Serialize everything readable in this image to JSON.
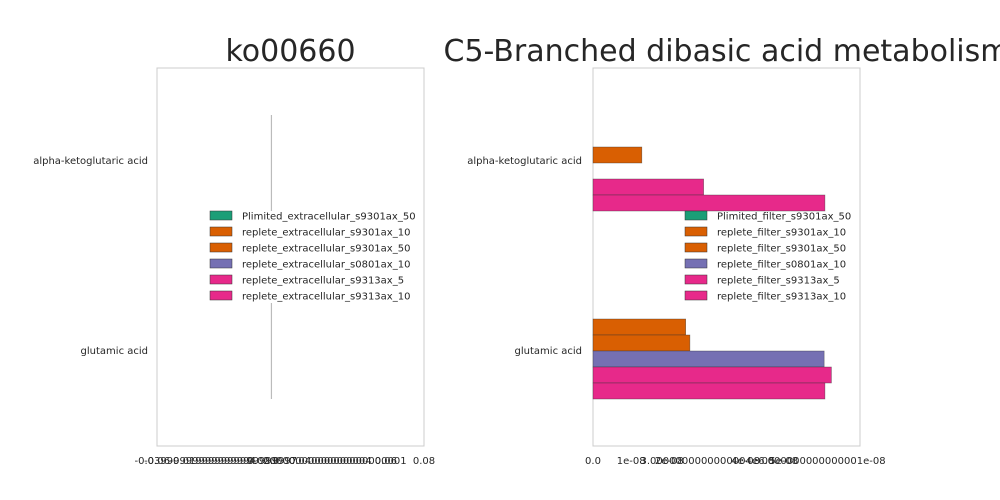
{
  "chart_data": [
    {
      "type": "bar",
      "orientation": "horizontal",
      "title": "ko00660",
      "categories": [
        "alpha-ketoglutaric acid",
        "glutamic acid"
      ],
      "xlabel": "",
      "ylabel": "",
      "xlim": [
        -0.06,
        0.08
      ],
      "x_tick_labels": [
        "-0.06",
        "-0.03999999999999994",
        "-0.019999999999999997",
        "0.0",
        "0.020000000000000004",
        "0.04000000000000001",
        "0.06",
        "0.08"
      ],
      "legend_position": "center",
      "grid": false,
      "series": [
        {
          "name": "Plimited_extracellular_s9301ax_50",
          "color": "#1b9e77",
          "values": [
            0,
            0
          ]
        },
        {
          "name": "replete_extracellular_s9301ax_10",
          "color": "#d95f02",
          "values": [
            0,
            0
          ]
        },
        {
          "name": "replete_extracellular_s9301ax_50",
          "color": "#d95f02",
          "values": [
            0,
            0
          ]
        },
        {
          "name": "replete_extracellular_s0801ax_10",
          "color": "#7570b3",
          "values": [
            0,
            0
          ]
        },
        {
          "name": "replete_extracellular_s9313ax_5",
          "color": "#e7298a",
          "values": [
            0,
            0
          ]
        },
        {
          "name": "replete_extracellular_s9313ax_10",
          "color": "#e7298a",
          "values": [
            0,
            0
          ]
        }
      ]
    },
    {
      "type": "bar",
      "orientation": "horizontal",
      "title": "C5-Branched dibasic acid metabolism",
      "categories": [
        "alpha-ketoglutaric acid",
        "glutamic acid"
      ],
      "xlabel": "",
      "ylabel": "",
      "xlim": [
        0,
        7e-08
      ],
      "x_tick_labels": [
        "0.0",
        "1e-08",
        "2e-08",
        "3.0000000000000004e-08",
        "4e-08",
        "5e-08",
        "6.000000000000001e-08"
      ],
      "legend_position": "center-right",
      "grid": false,
      "series": [
        {
          "name": "Plimited_filter_s9301ax_50",
          "color": "#1b9e77",
          "values": [
            0,
            0
          ]
        },
        {
          "name": "replete_filter_s9301ax_10",
          "color": "#d95f02",
          "values": [
            0,
            2.43e-08
          ]
        },
        {
          "name": "replete_filter_s9301ax_50",
          "color": "#d95f02",
          "values": [
            1.28e-08,
            2.54e-08
          ]
        },
        {
          "name": "replete_filter_s0801ax_10",
          "color": "#7570b3",
          "values": [
            0,
            6.06e-08
          ]
        },
        {
          "name": "replete_filter_s9313ax_5",
          "color": "#e7298a",
          "values": [
            2.9e-08,
            6.25e-08
          ]
        },
        {
          "name": "replete_filter_s9313ax_10",
          "color": "#e7298a",
          "values": [
            6.08e-08,
            6.08e-08
          ]
        }
      ]
    }
  ]
}
